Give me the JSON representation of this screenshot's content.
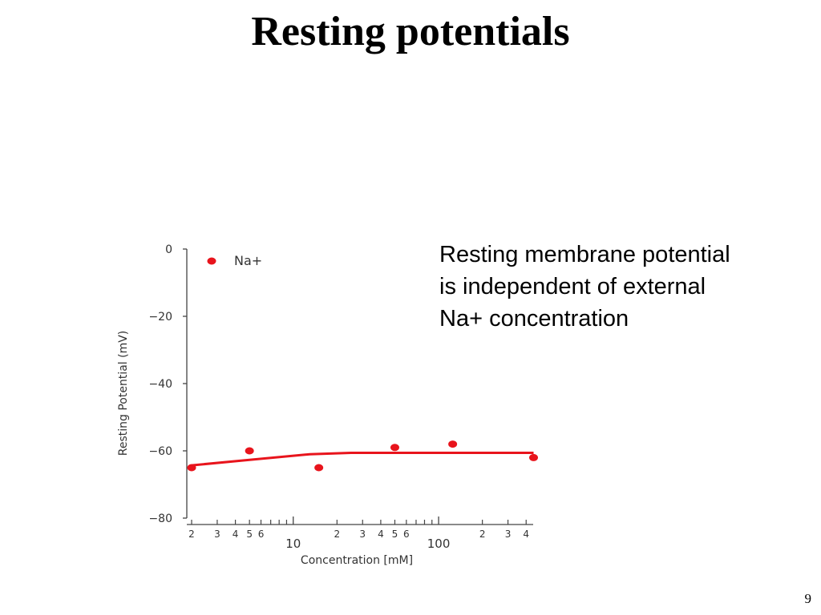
{
  "slide": {
    "title": "Resting potentials",
    "note_lines": [
      "Resting membrane potential",
      "is independent of external",
      "Na+ concentration"
    ],
    "page_number": "9"
  },
  "chart_data": {
    "type": "scatter",
    "xlabel": "Concentration [mM]",
    "ylabel": "Resting Potential (mV)",
    "xscale": "log",
    "xlim": [
      1.9,
      430
    ],
    "ylim": [
      -80,
      0
    ],
    "yticks": [
      0,
      -20,
      -40,
      -60,
      -80
    ],
    "xticks_major": [
      {
        "value": 10,
        "label": "10"
      },
      {
        "value": 100,
        "label": "100"
      }
    ],
    "xticks_minor": [
      {
        "value": 2,
        "label": "2"
      },
      {
        "value": 3,
        "label": "3"
      },
      {
        "value": 4,
        "label": "4"
      },
      {
        "value": 5,
        "label": "5"
      },
      {
        "value": 6,
        "label": "6"
      },
      {
        "value": 7,
        "label": ""
      },
      {
        "value": 8,
        "label": ""
      },
      {
        "value": 9,
        "label": ""
      },
      {
        "value": 20,
        "label": "2"
      },
      {
        "value": 30,
        "label": "3"
      },
      {
        "value": 40,
        "label": "4"
      },
      {
        "value": 50,
        "label": "5"
      },
      {
        "value": 60,
        "label": "6"
      },
      {
        "value": 70,
        "label": ""
      },
      {
        "value": 80,
        "label": ""
      },
      {
        "value": 90,
        "label": ""
      },
      {
        "value": 200,
        "label": "2"
      },
      {
        "value": 300,
        "label": "3"
      },
      {
        "value": 400,
        "label": "4"
      }
    ],
    "series": [
      {
        "name": "Na+",
        "color": "#e8141c",
        "points": [
          {
            "x": 2,
            "y": -65
          },
          {
            "x": 5,
            "y": -60
          },
          {
            "x": 15,
            "y": -65
          },
          {
            "x": 50,
            "y": -59
          },
          {
            "x": 125,
            "y": -58
          },
          {
            "x": 450,
            "y": -62
          }
        ]
      }
    ],
    "fit_line": {
      "color": "#e8141c",
      "points": [
        {
          "x": 2,
          "y": -64.3
        },
        {
          "x": 5,
          "y": -62.7
        },
        {
          "x": 13,
          "y": -61
        },
        {
          "x": 25,
          "y": -60.6
        },
        {
          "x": 450,
          "y": -60.6
        }
      ]
    },
    "legend": {
      "position": "top-left"
    },
    "grid": false
  }
}
